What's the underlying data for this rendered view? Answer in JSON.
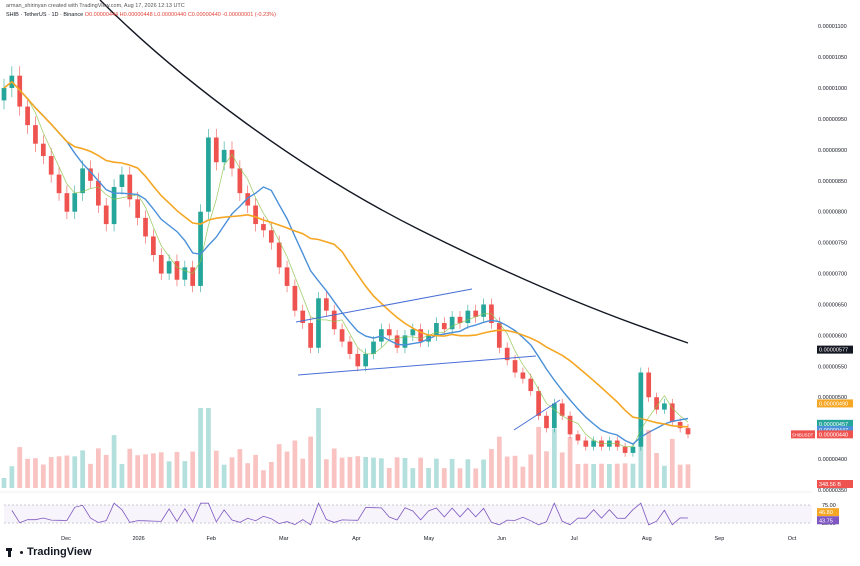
{
  "header": {
    "attribution": "arman_shirinyan created with TradingView.com, Aug 17, 2026 12:13 UTC",
    "symbol": "SHIB · TetherUS · 1D · Binance",
    "ohlc": "O0.00000444  H0.00000448  L0.00000440  C0.00000440  -0.00000001 (-0.23%)"
  },
  "logo": {
    "text": "TradingView"
  },
  "colors": {
    "up": "#26a69a",
    "down": "#ef5350",
    "ma_fast": "#8bc34a",
    "ma_mid": "#4a90d9",
    "ma_slow": "#f5a623",
    "ma_long": "#131722",
    "trendline": "#4a6fd6",
    "rsi": "#7e57c2"
  },
  "chart_data": {
    "type": "candlestick",
    "y_axis": {
      "min": 3.5e-06,
      "max": 1.11e-05,
      "ticks": [
        "0.00001100",
        "0.00001050",
        "0.00001000",
        "0.00000950",
        "0.00000900",
        "0.00000850",
        "0.00000800",
        "0.00000750",
        "0.00000700",
        "0.00000650",
        "0.00000600",
        "0.00000550",
        "0.00000500",
        "0.00000400",
        "0.00000350"
      ],
      "tick_values": [
        1.1e-05,
        1.05e-05,
        1e-05,
        9.5e-06,
        9e-06,
        8.5e-06,
        8e-06,
        7.5e-06,
        7e-06,
        6.5e-06,
        6e-06,
        5.5e-06,
        5e-06,
        4e-06,
        3.5e-06
      ]
    },
    "x_axis": {
      "labels": [
        "Dec",
        "2026",
        "Feb",
        "Mar",
        "Apr",
        "May",
        "Jun",
        "Jul",
        "Aug",
        "Sep",
        "Oct"
      ]
    },
    "price_labels": [
      {
        "text": "0.00000577",
        "value": 5.77e-06,
        "color": "#131722"
      },
      {
        "text": "0.00000490",
        "value": 4.9e-06,
        "color": "#f5a623"
      },
      {
        "text": "0.00000457",
        "value": 4.57e-06,
        "color": "#26a69a"
      },
      {
        "text": "0.00000447",
        "value": 4.47e-06,
        "color": "#4a90d9"
      },
      {
        "text": "0.00000440",
        "value": 4.4e-06,
        "color": "#ef5350"
      }
    ],
    "pair_tag": "SHIBUSDT",
    "candles_close": [
      1e-05,
      1.02e-05,
      9.7e-06,
      9.4e-06,
      9.1e-06,
      8.9e-06,
      8.6e-06,
      8.3e-06,
      8e-06,
      8.3e-06,
      8.7e-06,
      8.5e-06,
      8.1e-06,
      7.8e-06,
      8.4e-06,
      8.6e-06,
      8.2e-06,
      7.9e-06,
      7.6e-06,
      7.3e-06,
      7e-06,
      7.2e-06,
      6.9e-06,
      7.1e-06,
      6.8e-06,
      8e-06,
      9.2e-06,
      8.8e-06,
      9e-06,
      8.7e-06,
      8.3e-06,
      8.1e-06,
      7.8e-06,
      7.7e-06,
      7.5e-06,
      7.1e-06,
      6.8e-06,
      6.4e-06,
      6.2e-06,
      5.8e-06,
      6.6e-06,
      6.4e-06,
      6.1e-06,
      5.9e-06,
      5.7e-06,
      5.5e-06,
      5.7e-06,
      5.9e-06,
      6.1e-06,
      6e-06,
      5.8e-06,
      6e-06,
      6.1e-06,
      5.9e-06,
      6e-06,
      6.2e-06,
      6.1e-06,
      6.3e-06,
      6.2e-06,
      6.4e-06,
      6.3e-06,
      6.5e-06,
      6.2e-06,
      5.8e-06,
      5.6e-06,
      5.4e-06,
      5.3e-06,
      5.1e-06,
      4.7e-06,
      4.5e-06,
      4.9e-06,
      4.7e-06,
      4.4e-06,
      4.3e-06,
      4.2e-06,
      4.3e-06,
      4.2e-06,
      4.3e-06,
      4.2e-06,
      4.1e-06,
      4.2e-06,
      5.4e-06,
      5e-06,
      4.8e-06,
      4.9e-06,
      4.6e-06,
      4.5e-06,
      4.4e-06
    ],
    "rsi_axis": {
      "ticks": [
        "75.00",
        "25.00"
      ],
      "tick_values": [
        75,
        25
      ]
    },
    "rsi_labels": [
      {
        "text": "46.80",
        "value": 46.8
      },
      {
        "text": "43.75",
        "value": 43.75
      }
    ],
    "volume_label": "348.56 B"
  }
}
